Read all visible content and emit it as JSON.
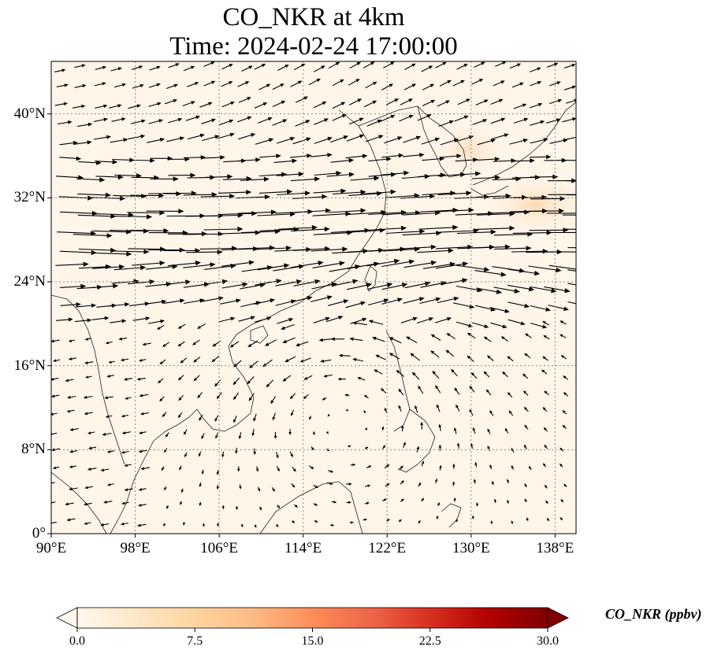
{
  "title": {
    "line1": "CO_NKR at 4km",
    "line2": "Time: 2024-02-24 17:00:00"
  },
  "map": {
    "extent": {
      "lon": [
        90,
        140
      ],
      "lat": [
        0,
        45
      ]
    },
    "lat_ticks": [
      {
        "value": 0,
        "label": "0°"
      },
      {
        "value": 8,
        "label": "8°N"
      },
      {
        "value": 16,
        "label": "16°N"
      },
      {
        "value": 24,
        "label": "24°N"
      },
      {
        "value": 32,
        "label": "32°N"
      },
      {
        "value": 40,
        "label": "40°N"
      }
    ],
    "lon_ticks": [
      {
        "value": 90,
        "label": "90°E"
      },
      {
        "value": 98,
        "label": "98°E"
      },
      {
        "value": 106,
        "label": "106°E"
      },
      {
        "value": 114,
        "label": "114°E"
      },
      {
        "value": 122,
        "label": "122°E"
      },
      {
        "value": 130,
        "label": "130°E"
      },
      {
        "value": 138,
        "label": "138°E"
      }
    ],
    "gridlines": true,
    "background_color": "#fff5e9",
    "field_highlights": [
      {
        "region": "Korea / East Sea",
        "color": "#fde8cc"
      },
      {
        "region": "East of Japan",
        "color": "#fde2c0"
      }
    ],
    "vectors": "wind vectors (westerly jet north of 20°N, anticyclonic circulation over South China Sea)"
  },
  "colorbar": {
    "label": "CO_NKR (ppbv)",
    "ticks": [
      "0.0",
      "7.5",
      "15.0",
      "22.5",
      "30.0"
    ],
    "min": 0.0,
    "max": 30.0,
    "colormap": "OrRd",
    "colors": [
      "#fff7ec",
      "#fee8c8",
      "#fdd49e",
      "#fdbb84",
      "#fc8d59",
      "#ef6548",
      "#d7301f",
      "#b30000",
      "#7f0000"
    ],
    "extend": "both"
  }
}
